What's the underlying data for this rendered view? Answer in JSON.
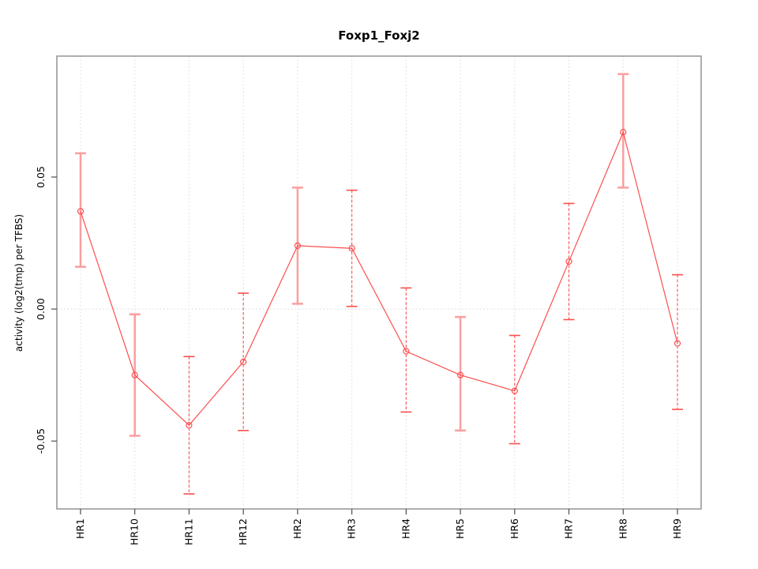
{
  "chart_data": {
    "type": "line",
    "title": "Foxp1_Foxj2",
    "xlabel": "",
    "ylabel": "activity (log2(tmp) per TFBS)",
    "categories": [
      "HR1",
      "HR10",
      "HR11",
      "HR12",
      "HR2",
      "HR3",
      "HR4",
      "HR5",
      "HR6",
      "HR7",
      "HR8",
      "HR9"
    ],
    "values": [
      0.037,
      -0.025,
      -0.044,
      -0.02,
      0.024,
      0.023,
      -0.016,
      -0.025,
      -0.031,
      0.018,
      0.067,
      -0.013
    ],
    "error_low": [
      0.016,
      -0.048,
      -0.07,
      -0.046,
      0.002,
      0.001,
      -0.039,
      -0.046,
      -0.051,
      -0.004,
      0.046,
      -0.038
    ],
    "error_high": [
      0.059,
      -0.002,
      -0.018,
      0.006,
      0.046,
      0.045,
      0.008,
      -0.003,
      -0.01,
      0.04,
      0.089,
      0.013
    ],
    "whisker_styles": [
      "solid",
      "solid",
      "dashed",
      "dashed",
      "solid",
      "dashed",
      "dashed",
      "solid",
      "dashed",
      "dashed",
      "solid",
      "dashed"
    ],
    "yticks": [
      -0.05,
      0,
      0.05
    ],
    "ytick_labels": [
      "-0.05",
      "0.00",
      "0.05"
    ],
    "ylim": [
      -0.0757,
      0.0958
    ],
    "marker": "open-circle",
    "grid": {
      "vertical_dotted_per_category": true,
      "horizontal_dotted_at_zero": true
    },
    "legend": "none",
    "colors": {
      "line": "#fb4f4f",
      "whisker_solid": "#fb9e9e",
      "frame": "#9a9a9a",
      "grid": "#d9d9d9",
      "tick": "#4d4d4d",
      "text": "#000000",
      "background": "#ffffff"
    }
  }
}
